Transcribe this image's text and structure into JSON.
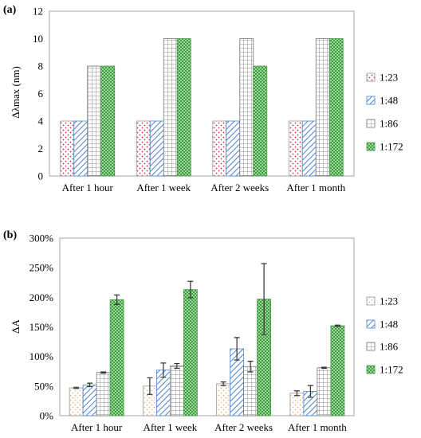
{
  "colors": {
    "s1_dot": "#e0263a",
    "s1_dot_b": "#e9b07a",
    "s2_hatch": "#4a84d4",
    "s3_grid": "#9a9a9a",
    "s4_check": "#3f9f3f",
    "axis": "#a6a6a6",
    "error_bar": "#333333"
  },
  "chart_data": [
    {
      "type": "bar",
      "panel_label": "(a)",
      "ylabel": "Δλmax (nm)",
      "ylim": [
        0,
        12
      ],
      "yticks": [
        "0",
        "2",
        "4",
        "6",
        "8",
        "10",
        "12"
      ],
      "grid": false,
      "legend_position": "right",
      "categories": [
        "After 1 hour",
        "After 1 week",
        "After 2 weeks",
        "After 1 month"
      ],
      "series": [
        {
          "name": "1:23",
          "values": [
            4,
            4,
            4,
            4
          ]
        },
        {
          "name": "1:48",
          "values": [
            4,
            4,
            4,
            4
          ]
        },
        {
          "name": "1:86",
          "values": [
            8,
            10,
            10,
            10
          ]
        },
        {
          "name": "1:172",
          "values": [
            8,
            10,
            8,
            10
          ]
        }
      ]
    },
    {
      "type": "bar",
      "panel_label": "(b)",
      "ylabel": "ΔA",
      "ylim": [
        0,
        300
      ],
      "yticks": [
        "0%",
        "50%",
        "100%",
        "150%",
        "200%",
        "250%",
        "300%"
      ],
      "grid": false,
      "legend_position": "right",
      "categories": [
        "After 1 hour",
        "After 1 week",
        "After 2 weeks",
        "After 1 month"
      ],
      "series": [
        {
          "name": "1:23",
          "values": [
            47,
            50,
            54,
            38
          ],
          "errors": [
            1,
            14,
            3,
            4
          ]
        },
        {
          "name": "1:48",
          "values": [
            52,
            77,
            113,
            41
          ],
          "errors": [
            3,
            12,
            19,
            10
          ]
        },
        {
          "name": "1:86",
          "values": [
            73,
            84,
            83,
            81
          ],
          "errors": [
            1,
            4,
            9,
            1
          ]
        },
        {
          "name": "1:172",
          "values": [
            196,
            213,
            197,
            152
          ],
          "errors": [
            8,
            14,
            60,
            1
          ]
        }
      ]
    }
  ]
}
